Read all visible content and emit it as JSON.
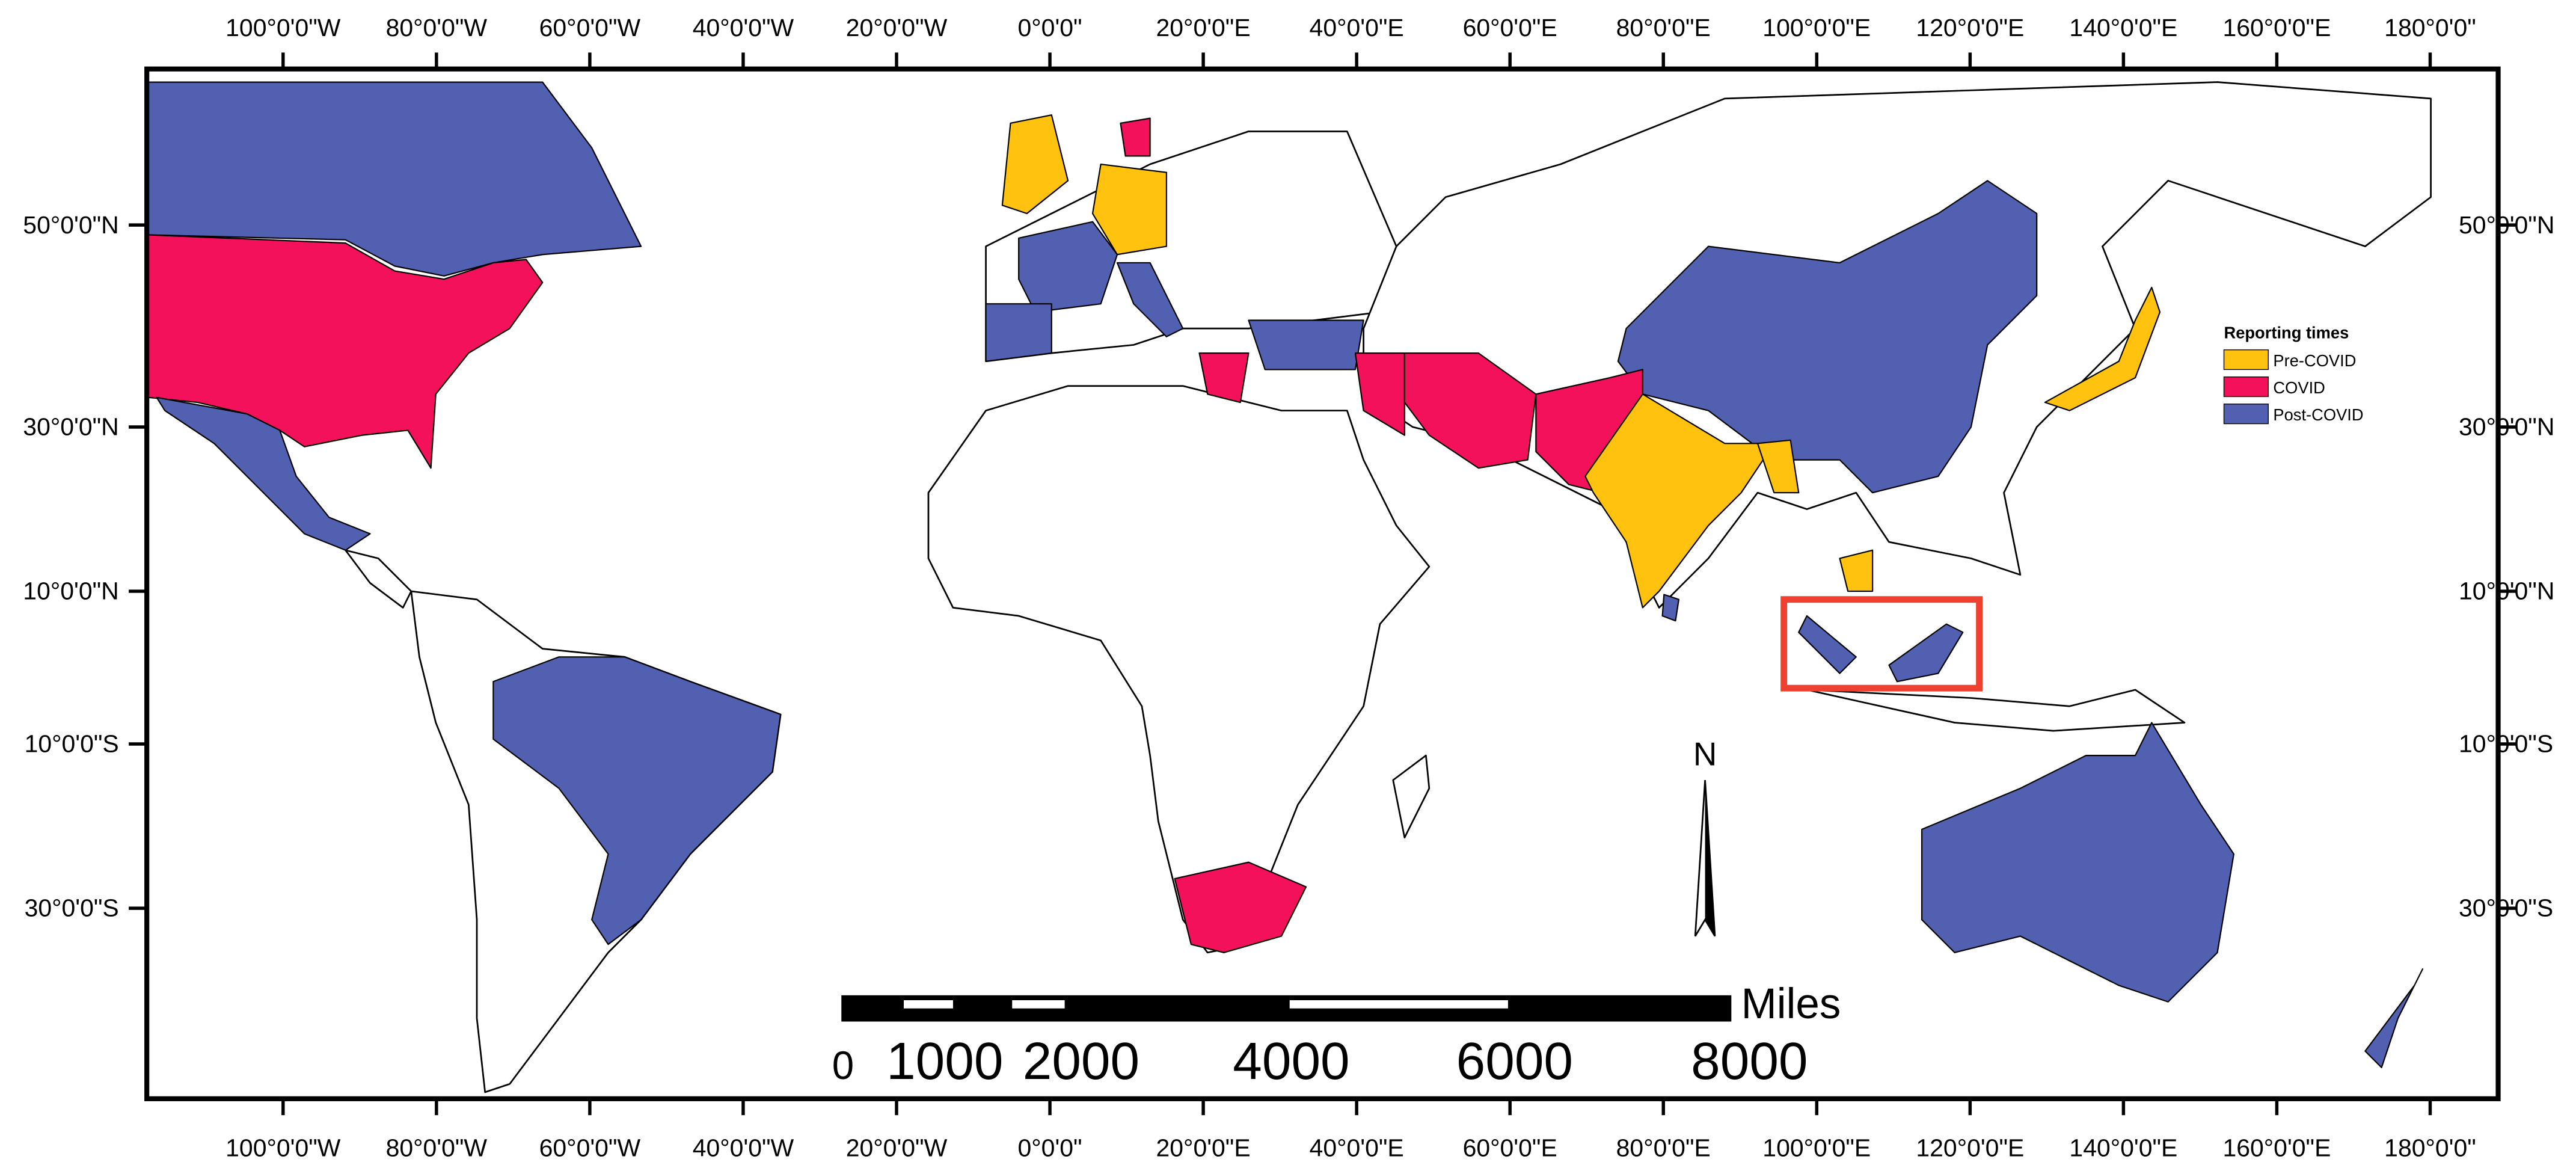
{
  "map": {
    "longitude_labels": [
      "100°0'0\"W",
      "80°0'0\"W",
      "60°0'0\"W",
      "40°0'0\"W",
      "20°0'0\"W",
      "0°0'0\"",
      "20°0'0\"E",
      "40°0'0\"E",
      "60°0'0\"E",
      "80°0'0\"E",
      "100°0'0\"E",
      "120°0'0\"E",
      "140°0'0\"E",
      "160°0'0\"E",
      "180°0'0\""
    ],
    "latitude_labels": [
      "50°0'0\"N",
      "30°0'0\"N",
      "10°0'0\"N",
      "10°0'0\"S",
      "30°0'0\"S"
    ],
    "legend": {
      "title": "Reporting times",
      "items": [
        {
          "label": "Pre-COVID",
          "color": "#ffc20e"
        },
        {
          "label": "COVID",
          "color": "#f2115a"
        },
        {
          "label": "Post-COVID",
          "color": "#5160b0"
        }
      ]
    },
    "scale_bar": {
      "unit": "Miles",
      "labels": [
        "0",
        "1000",
        "2000",
        "4000",
        "6000",
        "8000"
      ]
    },
    "north_arrow": "N"
  }
}
